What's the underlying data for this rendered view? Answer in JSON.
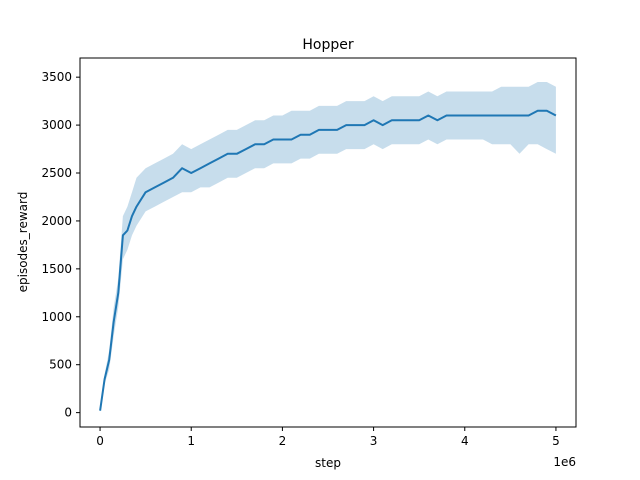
{
  "chart_data": {
    "type": "line",
    "title": "Hopper",
    "xlabel": "step",
    "ylabel": "episodes_reward",
    "x_offset_label": "1e6",
    "xlim": [
      -0.22,
      5.22
    ],
    "ylim": [
      -150,
      3700
    ],
    "x_ticks": [
      0,
      1,
      2,
      3,
      4,
      5
    ],
    "x_tick_labels": [
      "0",
      "1",
      "2",
      "3",
      "4",
      "5"
    ],
    "y_ticks": [
      0,
      500,
      1000,
      1500,
      2000,
      2500,
      3000,
      3500
    ],
    "y_tick_labels": [
      "0",
      "500",
      "1000",
      "1500",
      "2000",
      "2500",
      "3000",
      "3500"
    ],
    "grid": false,
    "legend": "none",
    "series": [
      {
        "color": "#1f77b4",
        "band_color": "#1f77b4",
        "band_opacity": 0.25,
        "x": [
          0.0,
          0.05,
          0.1,
          0.15,
          0.2,
          0.25,
          0.3,
          0.35,
          0.4,
          0.5,
          0.6,
          0.7,
          0.8,
          0.9,
          1.0,
          1.1,
          1.2,
          1.3,
          1.4,
          1.5,
          1.6,
          1.7,
          1.8,
          1.9,
          2.0,
          2.1,
          2.2,
          2.3,
          2.4,
          2.5,
          2.6,
          2.7,
          2.8,
          2.9,
          3.0,
          3.1,
          3.2,
          3.3,
          3.4,
          3.5,
          3.6,
          3.7,
          3.8,
          3.9,
          4.0,
          4.1,
          4.2,
          4.3,
          4.4,
          4.5,
          4.6,
          4.7,
          4.8,
          4.9,
          5.0
        ],
        "y": [
          20,
          350,
          550,
          950,
          1250,
          1850,
          1900,
          2050,
          2150,
          2300,
          2350,
          2400,
          2450,
          2550,
          2500,
          2550,
          2600,
          2650,
          2700,
          2700,
          2750,
          2800,
          2800,
          2850,
          2850,
          2850,
          2900,
          2900,
          2950,
          2950,
          2950,
          3000,
          3000,
          3000,
          3050,
          3000,
          3050,
          3050,
          3050,
          3050,
          3100,
          3050,
          3100,
          3100,
          3100,
          3100,
          3100,
          3100,
          3100,
          3100,
          3100,
          3100,
          3150,
          3150,
          3100
        ],
        "y_lower": [
          10,
          300,
          450,
          800,
          1100,
          1600,
          1700,
          1850,
          1950,
          2100,
          2150,
          2200,
          2250,
          2300,
          2300,
          2350,
          2350,
          2400,
          2450,
          2450,
          2500,
          2550,
          2550,
          2600,
          2600,
          2600,
          2650,
          2650,
          2700,
          2700,
          2700,
          2750,
          2750,
          2750,
          2800,
          2750,
          2800,
          2800,
          2800,
          2800,
          2850,
          2800,
          2850,
          2850,
          2850,
          2850,
          2850,
          2800,
          2800,
          2800,
          2700,
          2800,
          2800,
          2750,
          2700
        ],
        "y_upper": [
          30,
          400,
          650,
          1100,
          1400,
          2050,
          2150,
          2300,
          2450,
          2550,
          2600,
          2650,
          2700,
          2800,
          2750,
          2800,
          2850,
          2900,
          2950,
          2950,
          3000,
          3050,
          3050,
          3100,
          3100,
          3150,
          3150,
          3150,
          3200,
          3200,
          3200,
          3250,
          3250,
          3250,
          3300,
          3250,
          3300,
          3300,
          3300,
          3300,
          3350,
          3300,
          3350,
          3350,
          3350,
          3350,
          3350,
          3350,
          3400,
          3400,
          3400,
          3400,
          3450,
          3450,
          3400
        ]
      }
    ]
  }
}
